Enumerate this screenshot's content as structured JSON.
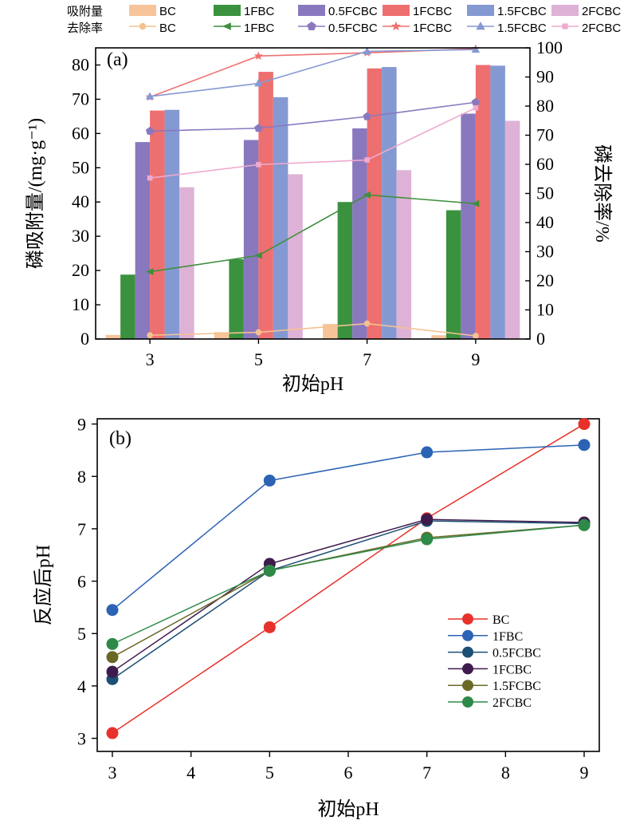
{
  "legend": {
    "row1_label": "吸附量",
    "row2_label": "去除率"
  },
  "colors": {
    "BC": "#f7c49a",
    "1FBC": "#3a923f",
    "0.5FCBC": "#8a78bf",
    "1FCBC": "#ee6f6f",
    "1.5FCBC": "#8499d2",
    "2FCBC": "#deb2d6"
  },
  "line_colors": {
    "BC": "#f3c292",
    "1FBC": "#3f8f3f",
    "0.5FCBC": "#8a78bf",
    "1FCBC": "#ef7171",
    "1.5FCBC": "#8599d2",
    "2FCBC": "#eeaacf"
  },
  "markers": {
    "BC": "circle",
    "1FBC": "triangle-left",
    "0.5FCBC": "pentagon",
    "1FCBC": "star",
    "1.5FCBC": "triangle-up",
    "2FCBC": "square"
  },
  "b_colors": {
    "BC": "#e8312b",
    "1FBC": "#2c63b4",
    "0.5FCBC": "#1c4f74",
    "1FCBC": "#3e1b4d",
    "1.5FCBC": "#6b6826",
    "2FCBC": "#2f8a49"
  },
  "chart_data": [
    {
      "type": "bar",
      "panel_label": "(a)",
      "categories": [
        "3",
        "5",
        "7",
        "9"
      ],
      "xlabel": "初始pH",
      "ylabel_left": "磷吸附量/(mg·g⁻¹)",
      "ylabel_right": "磷去除率/%",
      "ylim_left": [
        0,
        85
      ],
      "ylim_right": [
        0,
        100
      ],
      "yticks_left": [
        0,
        10,
        20,
        30,
        40,
        50,
        60,
        70,
        80
      ],
      "yticks_right": [
        0,
        10,
        20,
        30,
        40,
        50,
        60,
        70,
        80,
        90,
        100
      ],
      "bar_series": [
        {
          "name": "BC",
          "values": [
            1.2,
            2.0,
            4.4,
            1.1
          ]
        },
        {
          "name": "1FBC",
          "values": [
            18.8,
            23.3,
            40.0,
            37.6
          ]
        },
        {
          "name": "0.5FCBC",
          "values": [
            57.5,
            58.1,
            61.5,
            65.8
          ]
        },
        {
          "name": "1FCBC",
          "values": [
            66.7,
            78.0,
            79.0,
            80.0
          ]
        },
        {
          "name": "1.5FCBC",
          "values": [
            66.9,
            70.6,
            79.4,
            79.8
          ]
        },
        {
          "name": "2FCBC",
          "values": [
            44.3,
            48.1,
            49.3,
            63.7
          ]
        }
      ],
      "line_series": [
        {
          "name": "BC",
          "values": [
            1.3,
            2.3,
            5.3,
            1.1
          ]
        },
        {
          "name": "1FBC",
          "values": [
            23.1,
            28.7,
            49.5,
            46.5
          ]
        },
        {
          "name": "0.5FCBC",
          "values": [
            71.4,
            72.4,
            76.4,
            81.3
          ]
        },
        {
          "name": "1FCBC",
          "values": [
            83.1,
            97.2,
            98.3,
            99.7
          ]
        },
        {
          "name": "1.5FCBC",
          "values": [
            83.3,
            87.8,
            98.8,
            99.4
          ]
        },
        {
          "name": "2FCBC",
          "values": [
            55.3,
            59.9,
            61.5,
            79.4
          ]
        }
      ]
    },
    {
      "type": "line",
      "panel_label": "(b)",
      "x": [
        3,
        5,
        7,
        9
      ],
      "xlabel": "初始pH",
      "ylabel": "反应后pH",
      "xlim": [
        3,
        9
      ],
      "ylim": [
        2.75,
        9.1
      ],
      "xticks": [
        3,
        4,
        5,
        6,
        7,
        8,
        9
      ],
      "yticks": [
        3,
        4,
        5,
        6,
        7,
        8,
        9
      ],
      "legend_position": "lower-right",
      "series": [
        {
          "name": "BC",
          "values": [
            3.1,
            5.12,
            7.2,
            9.0
          ]
        },
        {
          "name": "1FBC",
          "values": [
            5.45,
            7.92,
            8.46,
            8.6
          ]
        },
        {
          "name": "0.5FCBC",
          "values": [
            4.13,
            6.2,
            7.15,
            7.1
          ]
        },
        {
          "name": "1FCBC",
          "values": [
            4.27,
            6.33,
            7.18,
            7.12
          ]
        },
        {
          "name": "1.5FCBC",
          "values": [
            4.55,
            6.2,
            6.83,
            7.07
          ]
        },
        {
          "name": "2FCBC",
          "values": [
            4.8,
            6.2,
            6.8,
            7.07
          ]
        }
      ]
    }
  ]
}
